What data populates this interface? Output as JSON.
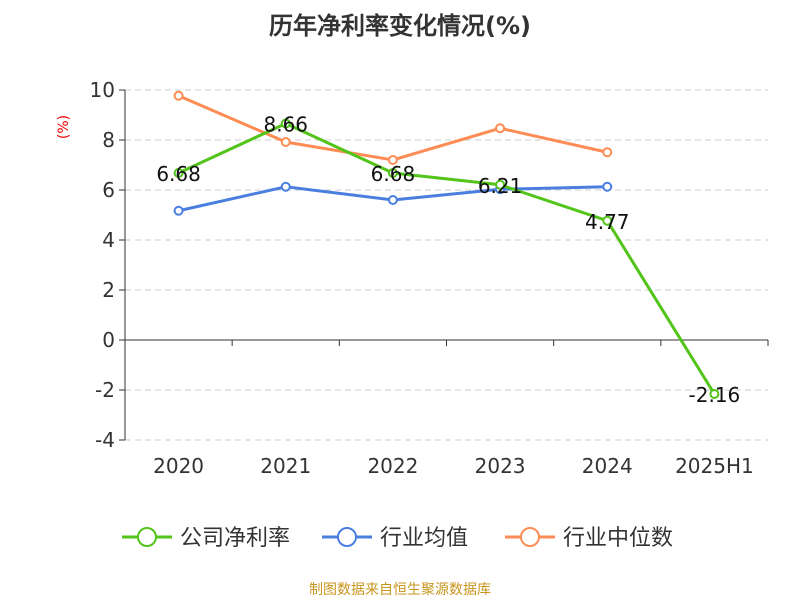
{
  "chart_data": {
    "type": "line",
    "title": "历年净利率变化情况(%)",
    "ylabel": "(%)",
    "categories": [
      "2020",
      "2021",
      "2022",
      "2023",
      "2024",
      "2025H1"
    ],
    "ylim": [
      -4,
      10
    ],
    "yticks": [
      -4,
      -2,
      0,
      2,
      4,
      6,
      8,
      10
    ],
    "grid": true,
    "legend_position": "bottom",
    "series": [
      {
        "name": "公司净利率",
        "color": "#52c41a",
        "values": [
          6.68,
          8.66,
          6.68,
          6.21,
          4.77,
          -2.16
        ],
        "labels": [
          "6.68",
          "8.66",
          "6.68",
          "6.21",
          "4.77",
          "-2.16"
        ]
      },
      {
        "name": "行业均值",
        "color": "#4a7fe0",
        "values": [
          5.17,
          6.13,
          5.6,
          6.03,
          6.13,
          null
        ]
      },
      {
        "name": "行业中位数",
        "color": "#ff8c55",
        "values": [
          9.77,
          7.92,
          7.2,
          8.47,
          7.51,
          null
        ]
      }
    ]
  },
  "source": "制图数据来自恒生聚源数据库"
}
